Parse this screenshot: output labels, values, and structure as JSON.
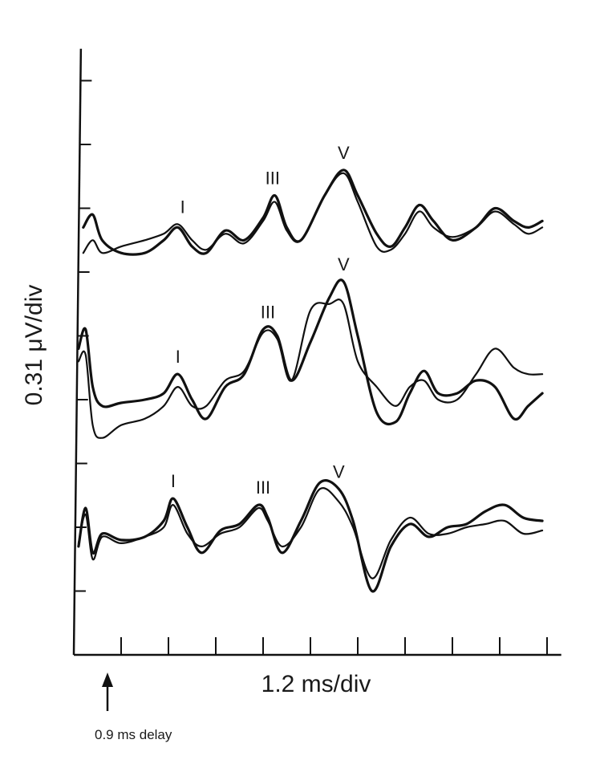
{
  "chart_data": {
    "type": "line",
    "ylabel": "0.31 μV/div",
    "xlabel": "1.2 ms/div",
    "annotation": "0.9 ms delay",
    "x_divisions": 10,
    "y_divisions": 9,
    "grid": false,
    "traces": [
      {
        "peak_labels": [
          {
            "text": "I",
            "x": 2.3
          },
          {
            "text": "III",
            "x": 4.2
          },
          {
            "text": "V",
            "x": 5.7
          }
        ],
        "series": [
          {
            "values": [
              [
                0.2,
                6.7
              ],
              [
                0.4,
                6.9
              ],
              [
                0.6,
                6.5
              ],
              [
                1.0,
                6.3
              ],
              [
                1.5,
                6.3
              ],
              [
                1.9,
                6.5
              ],
              [
                2.2,
                6.7
              ],
              [
                2.5,
                6.4
              ],
              [
                2.8,
                6.3
              ],
              [
                3.2,
                6.65
              ],
              [
                3.6,
                6.5
              ],
              [
                4.0,
                6.85
              ],
              [
                4.25,
                7.2
              ],
              [
                4.5,
                6.7
              ],
              [
                4.8,
                6.5
              ],
              [
                5.3,
                7.2
              ],
              [
                5.7,
                7.6
              ],
              [
                6.0,
                7.2
              ],
              [
                6.4,
                6.6
              ],
              [
                6.7,
                6.4
              ],
              [
                7.0,
                6.7
              ],
              [
                7.3,
                7.05
              ],
              [
                7.6,
                6.8
              ],
              [
                8.0,
                6.5
              ],
              [
                8.5,
                6.7
              ],
              [
                8.9,
                7.0
              ],
              [
                9.3,
                6.8
              ],
              [
                9.6,
                6.7
              ],
              [
                9.9,
                6.8
              ]
            ]
          },
          {
            "values": [
              [
                0.2,
                6.3
              ],
              [
                0.4,
                6.5
              ],
              [
                0.6,
                6.3
              ],
              [
                1.0,
                6.4
              ],
              [
                1.5,
                6.5
              ],
              [
                1.9,
                6.6
              ],
              [
                2.2,
                6.75
              ],
              [
                2.5,
                6.5
              ],
              [
                2.8,
                6.35
              ],
              [
                3.2,
                6.6
              ],
              [
                3.6,
                6.45
              ],
              [
                4.0,
                6.8
              ],
              [
                4.25,
                7.1
              ],
              [
                4.5,
                6.65
              ],
              [
                4.8,
                6.5
              ],
              [
                5.3,
                7.2
              ],
              [
                5.7,
                7.55
              ],
              [
                6.0,
                7.1
              ],
              [
                6.4,
                6.4
              ],
              [
                6.7,
                6.35
              ],
              [
                7.0,
                6.6
              ],
              [
                7.3,
                6.95
              ],
              [
                7.6,
                6.7
              ],
              [
                8.0,
                6.55
              ],
              [
                8.5,
                6.7
              ],
              [
                8.9,
                6.95
              ],
              [
                9.3,
                6.75
              ],
              [
                9.6,
                6.6
              ],
              [
                9.9,
                6.7
              ]
            ]
          }
        ]
      },
      {
        "peak_labels": [
          {
            "text": "I",
            "x": 2.2
          },
          {
            "text": "III",
            "x": 4.1
          },
          {
            "text": "V",
            "x": 5.7
          }
        ],
        "series": [
          {
            "values": [
              [
                0.1,
                4.8
              ],
              [
                0.25,
                5.1
              ],
              [
                0.4,
                4.2
              ],
              [
                0.6,
                3.9
              ],
              [
                1.0,
                3.95
              ],
              [
                1.5,
                4.0
              ],
              [
                1.9,
                4.1
              ],
              [
                2.2,
                4.4
              ],
              [
                2.5,
                4.0
              ],
              [
                2.8,
                3.7
              ],
              [
                3.2,
                4.2
              ],
              [
                3.6,
                4.4
              ],
              [
                4.0,
                5.1
              ],
              [
                4.3,
                5.0
              ],
              [
                4.6,
                4.3
              ],
              [
                5.0,
                4.9
              ],
              [
                5.4,
                5.6
              ],
              [
                5.7,
                5.85
              ],
              [
                6.0,
                5.0
              ],
              [
                6.4,
                3.8
              ],
              [
                6.8,
                3.65
              ],
              [
                7.1,
                4.1
              ],
              [
                7.4,
                4.45
              ],
              [
                7.7,
                4.1
              ],
              [
                8.1,
                4.1
              ],
              [
                8.5,
                4.3
              ],
              [
                8.9,
                4.2
              ],
              [
                9.3,
                3.7
              ],
              [
                9.6,
                3.9
              ],
              [
                9.9,
                4.1
              ]
            ]
          },
          {
            "values": [
              [
                0.1,
                4.6
              ],
              [
                0.25,
                4.7
              ],
              [
                0.4,
                3.6
              ],
              [
                0.6,
                3.4
              ],
              [
                1.0,
                3.6
              ],
              [
                1.5,
                3.7
              ],
              [
                1.9,
                3.9
              ],
              [
                2.2,
                4.2
              ],
              [
                2.5,
                3.9
              ],
              [
                2.8,
                3.9
              ],
              [
                3.2,
                4.3
              ],
              [
                3.6,
                4.45
              ],
              [
                4.0,
                5.05
              ],
              [
                4.3,
                4.95
              ],
              [
                4.6,
                4.3
              ],
              [
                5.0,
                5.4
              ],
              [
                5.4,
                5.5
              ],
              [
                5.7,
                5.5
              ],
              [
                6.0,
                4.6
              ],
              [
                6.4,
                4.2
              ],
              [
                6.8,
                3.9
              ],
              [
                7.1,
                4.2
              ],
              [
                7.4,
                4.3
              ],
              [
                7.7,
                4.0
              ],
              [
                8.1,
                4.0
              ],
              [
                8.5,
                4.4
              ],
              [
                8.9,
                4.8
              ],
              [
                9.3,
                4.5
              ],
              [
                9.6,
                4.4
              ],
              [
                9.9,
                4.4
              ]
            ]
          }
        ]
      },
      {
        "peak_labels": [
          {
            "text": "I",
            "x": 2.1
          },
          {
            "text": "III",
            "x": 4.0
          },
          {
            "text": "V",
            "x": 5.6
          }
        ],
        "series": [
          {
            "values": [
              [
                0.1,
                1.7
              ],
              [
                0.25,
                2.3
              ],
              [
                0.4,
                1.6
              ],
              [
                0.6,
                1.9
              ],
              [
                1.0,
                1.8
              ],
              [
                1.5,
                1.85
              ],
              [
                1.9,
                2.1
              ],
              [
                2.1,
                2.45
              ],
              [
                2.4,
                2.0
              ],
              [
                2.7,
                1.6
              ],
              [
                3.1,
                1.95
              ],
              [
                3.5,
                2.05
              ],
              [
                3.9,
                2.35
              ],
              [
                4.1,
                2.15
              ],
              [
                4.4,
                1.6
              ],
              [
                4.8,
                2.1
              ],
              [
                5.2,
                2.7
              ],
              [
                5.6,
                2.6
              ],
              [
                5.9,
                2.1
              ],
              [
                6.3,
                1.0
              ],
              [
                6.7,
                1.7
              ],
              [
                7.1,
                2.05
              ],
              [
                7.5,
                1.85
              ],
              [
                7.9,
                2.0
              ],
              [
                8.3,
                2.05
              ],
              [
                8.7,
                2.25
              ],
              [
                9.1,
                2.35
              ],
              [
                9.5,
                2.15
              ],
              [
                9.9,
                2.1
              ]
            ]
          },
          {
            "values": [
              [
                0.1,
                1.75
              ],
              [
                0.25,
                2.2
              ],
              [
                0.4,
                1.5
              ],
              [
                0.6,
                1.85
              ],
              [
                1.0,
                1.75
              ],
              [
                1.5,
                1.85
              ],
              [
                1.9,
                2.0
              ],
              [
                2.1,
                2.35
              ],
              [
                2.4,
                1.9
              ],
              [
                2.7,
                1.7
              ],
              [
                3.1,
                1.9
              ],
              [
                3.5,
                2.0
              ],
              [
                3.9,
                2.3
              ],
              [
                4.1,
                2.1
              ],
              [
                4.4,
                1.7
              ],
              [
                4.8,
                2.0
              ],
              [
                5.2,
                2.6
              ],
              [
                5.6,
                2.4
              ],
              [
                5.9,
                2.0
              ],
              [
                6.3,
                1.2
              ],
              [
                6.7,
                1.8
              ],
              [
                7.1,
                2.15
              ],
              [
                7.5,
                1.9
              ],
              [
                7.9,
                1.9
              ],
              [
                8.3,
                2.0
              ],
              [
                8.7,
                2.05
              ],
              [
                9.1,
                2.1
              ],
              [
                9.5,
                1.9
              ],
              [
                9.9,
                1.95
              ]
            ]
          }
        ]
      }
    ]
  }
}
